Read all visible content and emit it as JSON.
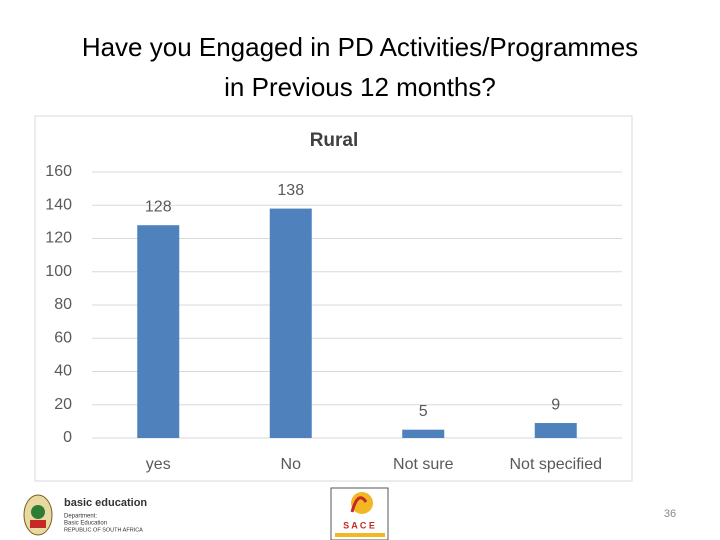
{
  "title": [
    "Have you Engaged in PD Activities/Programmes",
    "in Previous 12 months?"
  ],
  "chart_data": {
    "type": "bar",
    "title": "Rural",
    "categories": [
      "yes",
      "No",
      "Not sure",
      "Not specified"
    ],
    "values": [
      128,
      138,
      5,
      9
    ],
    "color": "#4f81bd",
    "ylim": [
      0,
      160
    ],
    "yticks": [
      0,
      20,
      40,
      60,
      80,
      100,
      120,
      140,
      160
    ],
    "grid": true
  },
  "logos": {
    "dbe": [
      "basic education",
      "Department:",
      "Basic Education",
      "REPUBLIC OF SOUTH AFRICA"
    ],
    "sace": "S A C E"
  },
  "page_number": "36"
}
